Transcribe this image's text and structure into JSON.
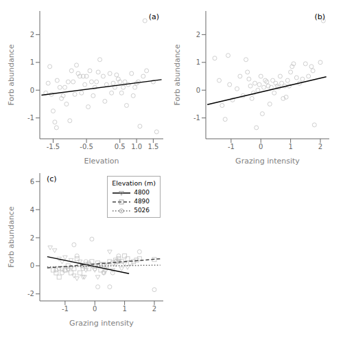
{
  "chart_data": [
    {
      "type": "scatter",
      "annotation": "(a)",
      "x_label": "Elevation",
      "y_label": "Forb abundance",
      "grid": false,
      "xlim": [
        -1.9,
        1.8
      ],
      "ylim": [
        -1.75,
        2.85
      ],
      "xticks": [
        -1.5,
        -0.5,
        0.5,
        {
          "value": 1.0,
          "label": "1.0"
        },
        1.5
      ],
      "yticks": [
        -1,
        0,
        1,
        2
      ],
      "series": [
        {
          "type": "scatter",
          "color": "#c0c0c0",
          "marker": "circle",
          "x": [
            -1.72,
            -1.65,
            -1.6,
            -1.55,
            -1.5,
            -1.45,
            -1.4,
            -1.38,
            -1.3,
            -1.25,
            -1.2,
            -1.15,
            -1.1,
            -1.05,
            -1.0,
            -0.95,
            -0.9,
            -0.85,
            -0.8,
            -0.75,
            -0.7,
            -0.65,
            -0.6,
            -0.55,
            -0.5,
            -0.45,
            -0.4,
            -0.35,
            -0.3,
            -0.25,
            -0.2,
            -0.15,
            -0.1,
            0.0,
            0.05,
            0.1,
            0.2,
            0.25,
            0.3,
            0.35,
            0.4,
            0.45,
            0.5,
            0.55,
            0.6,
            0.65,
            0.7,
            0.75,
            0.85,
            0.9,
            0.95,
            1.0,
            1.05,
            1.1,
            1.2,
            1.25,
            1.3,
            1.5,
            1.6
          ],
          "values": [
            -0.1,
            0.25,
            0.85,
            -0.15,
            -0.75,
            -1.15,
            -1.35,
            0.35,
            0.1,
            -0.3,
            -0.2,
            0.1,
            -0.5,
            0.3,
            -1.1,
            0.7,
            0.3,
            -0.15,
            0.9,
            0.6,
            0.5,
            -0.1,
            0.5,
            0.2,
            0.5,
            -0.6,
            0.7,
            0.3,
            -0.2,
            0.1,
            0.3,
            0.65,
            1.1,
            0.5,
            -0.4,
            0.2,
            0.6,
            -0.1,
            0.25,
            0.1,
            0.55,
            0.4,
            0.3,
            -0.1,
            0.1,
            0.3,
            -0.55,
            0.2,
            0.6,
            -0.2,
            0.1,
            0.25,
            0.3,
            -1.3,
            0.5,
            2.5,
            0.7,
            0.3,
            -1.5
          ]
        },
        {
          "type": "line",
          "color": "#000000",
          "line_style": "solid",
          "x": [
            -1.85,
            1.75
          ],
          "values": [
            -0.18,
            0.38
          ]
        }
      ]
    },
    {
      "type": "scatter",
      "annotation": "(b)",
      "x_label": "Grazing intensity",
      "y_label": "Forb abundance",
      "grid": false,
      "xlim": [
        -1.85,
        2.3
      ],
      "ylim": [
        -1.75,
        2.85
      ],
      "xticks": [
        -1,
        0,
        1,
        2
      ],
      "yticks": [
        -1,
        0,
        1,
        2
      ],
      "series": [
        {
          "type": "scatter",
          "color": "#c0c0c0",
          "marker": "circle",
          "x": [
            -1.55,
            -1.4,
            -1.3,
            -1.2,
            -1.1,
            -1.05,
            -0.95,
            -0.8,
            -0.7,
            -0.6,
            -0.5,
            -0.45,
            -0.4,
            -0.35,
            -0.3,
            -0.25,
            -0.2,
            -0.15,
            -0.1,
            -0.05,
            0.0,
            0.05,
            0.1,
            0.15,
            0.2,
            0.25,
            0.3,
            0.35,
            0.4,
            0.45,
            0.5,
            0.55,
            0.6,
            0.65,
            0.7,
            0.75,
            0.8,
            0.85,
            0.9,
            0.95,
            1.0,
            1.05,
            1.1,
            1.2,
            1.3,
            1.4,
            1.5,
            1.6,
            1.7,
            1.75,
            1.8,
            2.0,
            2.1
          ],
          "values": [
            1.15,
            0.35,
            -0.55,
            -1.05,
            1.25,
            0.2,
            -0.35,
            0.05,
            0.5,
            -0.2,
            1.1,
            0.65,
            0.4,
            0.15,
            -0.3,
            -0.1,
            0.25,
            -1.35,
            0.0,
            0.2,
            0.5,
            -0.85,
            0.1,
            0.35,
            0.3,
            0.15,
            -0.5,
            0.1,
            0.35,
            -0.1,
            0.25,
            0.15,
            0.1,
            0.5,
            0.25,
            -0.3,
            0.15,
            -0.25,
            0.35,
            0.15,
            0.65,
            0.85,
            0.95,
            0.45,
            0.25,
            0.4,
            0.95,
            0.5,
            0.85,
            0.7,
            -1.25,
            1.0,
            2.5
          ]
        },
        {
          "type": "line",
          "color": "#000000",
          "line_style": "solid",
          "x": [
            -1.8,
            2.2
          ],
          "values": [
            -0.52,
            0.48
          ]
        }
      ]
    },
    {
      "type": "scatter",
      "annotation": "(c)",
      "x_label": "Grazing intensity",
      "y_label": "Forb abundance",
      "grid": false,
      "xlim": [
        -1.85,
        2.3
      ],
      "ylim": [
        -2.5,
        6.6
      ],
      "xticks": [
        -1,
        0,
        1,
        2
      ],
      "yticks": [
        -2,
        0,
        2,
        4,
        6
      ],
      "legend": "upper right",
      "legend_title": "Elevation (m)",
      "series": [
        {
          "type": "scatter",
          "color": "#c0c0c0",
          "marker": "triangle-down",
          "x": [
            -1.5,
            -1.35,
            -1.2,
            -1.1,
            -1.0,
            -0.9,
            -0.8,
            -0.7,
            -0.6,
            -0.5,
            -0.4,
            -0.35,
            -0.3,
            -0.2,
            -0.1,
            0.0,
            0.1,
            0.2,
            0.3,
            0.35,
            0.4,
            0.5,
            0.6,
            0.7,
            0.8,
            0.9,
            1.0,
            1.1
          ],
          "values": [
            1.3,
            1.1,
            0.5,
            0.3,
            0.6,
            -0.3,
            0.4,
            -0.7,
            -0.9,
            0.3,
            -0.8,
            -0.8,
            -0.3,
            0.1,
            0.0,
            -0.3,
            -0.8,
            0.1,
            -0.5,
            -0.4,
            0.0,
            1.0,
            -0.3,
            0.1,
            0.3,
            -0.2,
            0.15,
            -0.1
          ]
        },
        {
          "type": "scatter",
          "color": "#c0c0c0",
          "marker": "square",
          "x": [
            -1.4,
            -1.3,
            -1.2,
            -1.1,
            -1.0,
            -0.9,
            -0.8,
            -0.7,
            -0.6,
            -0.5,
            -0.4,
            -0.3,
            -0.2,
            -0.1,
            0.0,
            0.1,
            0.2,
            0.3,
            0.4,
            0.5,
            0.6,
            0.7,
            0.75,
            0.8,
            0.9,
            1.0,
            1.1,
            1.2,
            1.3,
            1.4,
            1.5,
            2.0
          ],
          "values": [
            -0.3,
            -0.5,
            -0.8,
            -0.2,
            -0.3,
            0.0,
            -0.5,
            -0.2,
            0.5,
            -0.5,
            0.0,
            0.1,
            -0.2,
            0.3,
            0.0,
            0.2,
            -0.3,
            0.1,
            0.0,
            0.3,
            0.2,
            0.4,
            0.3,
            0.5,
            0.3,
            0.7,
            0.5,
            0.2,
            0.3,
            0.4,
            0.5,
            0.45
          ]
        },
        {
          "type": "scatter",
          "color": "#c0c0c0",
          "marker": "circle",
          "x": [
            -1.3,
            -1.2,
            -1.1,
            -1.0,
            -0.9,
            -0.8,
            -0.7,
            -0.6,
            -0.5,
            -0.4,
            -0.3,
            -0.2,
            -0.1,
            0.0,
            0.1,
            0.2,
            0.3,
            0.5,
            0.6,
            0.7,
            0.8,
            1.5,
            2.0
          ],
          "values": [
            -0.3,
            -0.2,
            -0.5,
            -0.3,
            -0.2,
            -0.1,
            1.5,
            0.7,
            0.1,
            -0.2,
            0.3,
            0.2,
            1.9,
            -0.2,
            -1.5,
            0.1,
            -0.5,
            -1.5,
            -0.5,
            0.3,
            0.7,
            1.0,
            -1.7
          ]
        },
        {
          "type": "line",
          "name": "4800",
          "color": "#000000",
          "line_style": "solid",
          "marker": "triangle-down",
          "x": [
            -1.6,
            1.15
          ],
          "values": [
            0.65,
            -0.55
          ]
        },
        {
          "type": "line",
          "name": "4890",
          "color": "#444444",
          "line_style": "dashed",
          "marker": "square",
          "x": [
            -1.6,
            2.2
          ],
          "values": [
            -0.15,
            0.5
          ]
        },
        {
          "type": "line",
          "name": "5026",
          "color": "#666666",
          "line_style": "dotted",
          "marker": "circle",
          "x": [
            -1.6,
            2.2
          ],
          "values": [
            -0.08,
            0.05
          ]
        }
      ]
    }
  ]
}
